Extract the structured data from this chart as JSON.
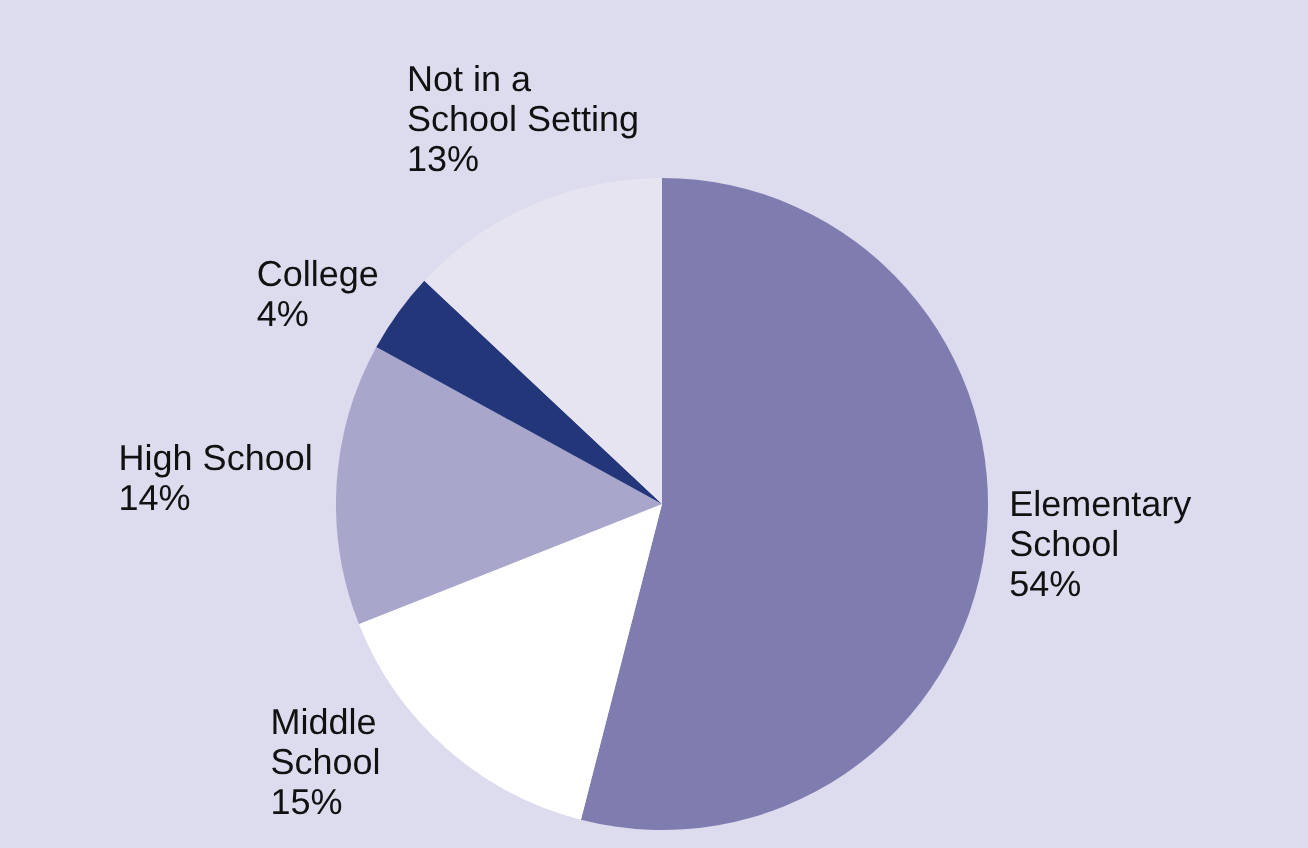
{
  "chart_data": {
    "type": "pie",
    "categories": [
      "Elementary School",
      "Middle School",
      "High School",
      "College",
      "Not in a School Setting"
    ],
    "values": [
      54,
      15,
      14,
      4,
      13
    ],
    "colors": [
      "#7f7daf",
      "#ffffff",
      "#a8a6cb",
      "#24367a",
      "#e7e4f1"
    ],
    "value_labels": [
      "54%",
      "15%",
      "14%",
      "4%",
      "13%"
    ],
    "legend": false
  }
}
